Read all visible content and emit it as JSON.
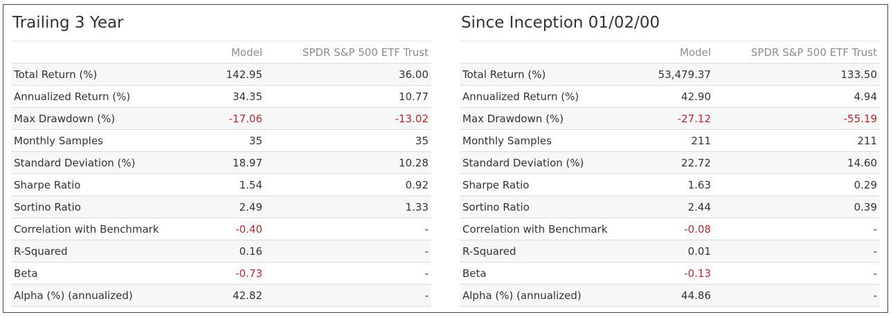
{
  "colors": {
    "negative": "#c0282d",
    "header_text": "#8c8c8c",
    "body_text": "#333333",
    "stripe": "#f7f7f7",
    "frame_border": "#444444"
  },
  "panels": [
    {
      "title": "Trailing 3 Year",
      "columns": [
        "",
        "Model",
        "SPDR S&P 500 ETF Trust"
      ],
      "rows": [
        {
          "label": "Total Return (%)",
          "model": "142.95",
          "bench": "36.00",
          "model_neg": false,
          "bench_neg": false
        },
        {
          "label": "Annualized Return (%)",
          "model": "34.35",
          "bench": "10.77",
          "model_neg": false,
          "bench_neg": false
        },
        {
          "label": "Max Drawdown (%)",
          "model": "-17.06",
          "bench": "-13.02",
          "model_neg": true,
          "bench_neg": true
        },
        {
          "label": "Monthly Samples",
          "model": "35",
          "bench": "35",
          "model_neg": false,
          "bench_neg": false
        },
        {
          "label": "Standard Deviation (%)",
          "model": "18.97",
          "bench": "10.28",
          "model_neg": false,
          "bench_neg": false
        },
        {
          "label": "Sharpe Ratio",
          "model": "1.54",
          "bench": "0.92",
          "model_neg": false,
          "bench_neg": false
        },
        {
          "label": "Sortino Ratio",
          "model": "2.49",
          "bench": "1.33",
          "model_neg": false,
          "bench_neg": false
        },
        {
          "label": "Correlation with Benchmark",
          "model": "-0.40",
          "bench": "-",
          "model_neg": true,
          "bench_neg": false
        },
        {
          "label": "R-Squared",
          "model": "0.16",
          "bench": "-",
          "model_neg": false,
          "bench_neg": false
        },
        {
          "label": "Beta",
          "model": "-0.73",
          "bench": "-",
          "model_neg": true,
          "bench_neg": false
        },
        {
          "label": "Alpha (%) (annualized)",
          "model": "42.82",
          "bench": "-",
          "model_neg": false,
          "bench_neg": false
        }
      ]
    },
    {
      "title": "Since Inception 01/02/00",
      "columns": [
        "",
        "Model",
        "SPDR S&P 500 ETF Trust"
      ],
      "rows": [
        {
          "label": "Total Return (%)",
          "model": "53,479.37",
          "bench": "133.50",
          "model_neg": false,
          "bench_neg": false
        },
        {
          "label": "Annualized Return (%)",
          "model": "42.90",
          "bench": "4.94",
          "model_neg": false,
          "bench_neg": false
        },
        {
          "label": "Max Drawdown (%)",
          "model": "-27.12",
          "bench": "-55.19",
          "model_neg": true,
          "bench_neg": true
        },
        {
          "label": "Monthly Samples",
          "model": "211",
          "bench": "211",
          "model_neg": false,
          "bench_neg": false
        },
        {
          "label": "Standard Deviation (%)",
          "model": "22.72",
          "bench": "14.60",
          "model_neg": false,
          "bench_neg": false
        },
        {
          "label": "Sharpe Ratio",
          "model": "1.63",
          "bench": "0.29",
          "model_neg": false,
          "bench_neg": false
        },
        {
          "label": "Sortino Ratio",
          "model": "2.44",
          "bench": "0.39",
          "model_neg": false,
          "bench_neg": false
        },
        {
          "label": "Correlation with Benchmark",
          "model": "-0.08",
          "bench": "-",
          "model_neg": true,
          "bench_neg": false
        },
        {
          "label": "R-Squared",
          "model": "0.01",
          "bench": "-",
          "model_neg": false,
          "bench_neg": false
        },
        {
          "label": "Beta",
          "model": "-0.13",
          "bench": "-",
          "model_neg": true,
          "bench_neg": false
        },
        {
          "label": "Alpha (%) (annualized)",
          "model": "44.86",
          "bench": "-",
          "model_neg": false,
          "bench_neg": false
        }
      ]
    }
  ]
}
